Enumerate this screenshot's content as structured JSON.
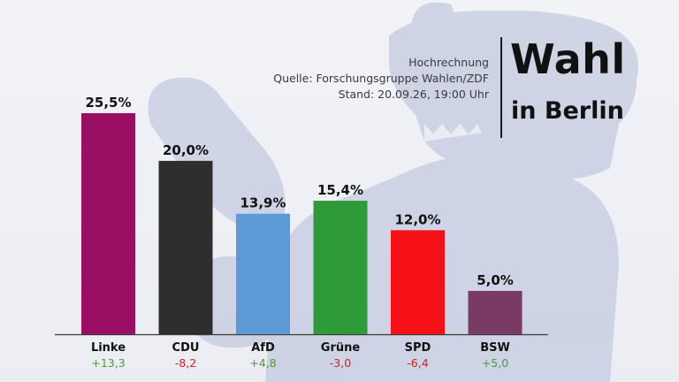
{
  "header": {
    "line1": "Hochrechnung",
    "line2": "Quelle: Forschungsgruppe Wahlen/ZDF",
    "line3": "Stand: 20.09.26, 19:00 Uhr"
  },
  "title": {
    "main": "Wahl",
    "sub": "in Berlin"
  },
  "chart_data": {
    "type": "bar",
    "categories": [
      "Linke",
      "CDU",
      "AfD",
      "Grüne",
      "SPD",
      "BSW"
    ],
    "values": [
      25.5,
      20.0,
      13.9,
      15.4,
      12.0,
      5.0
    ],
    "value_labels": [
      "25,5%",
      "20,0%",
      "13,9%",
      "15,4%",
      "12,0%",
      "5,0%"
    ],
    "changes": [
      "+13,3",
      "-8,2",
      "+4,8",
      "-3,0",
      "-6,4",
      "+5,0"
    ],
    "colors": [
      "#9a0f63",
      "#2e2e2e",
      "#5c9ad6",
      "#2f9a38",
      "#f51018",
      "#7a3a66"
    ],
    "change_colors": {
      "positive": "#4a9a3c",
      "negative": "#d22020"
    },
    "ylim": [
      0,
      25.5
    ],
    "grid": false
  }
}
